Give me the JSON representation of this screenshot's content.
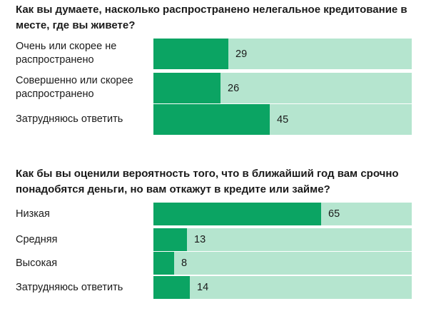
{
  "chart_data": [
    {
      "type": "bar",
      "orientation": "horizontal",
      "title": "Как вы думаете, насколько распространено нелегальное кредитование в месте, где вы живете?",
      "categories": [
        "Очень или скорее не распространено",
        "Совершенно или скорее распространено",
        "Затрудняюсь ответить"
      ],
      "values": [
        29,
        26,
        45
      ],
      "xlim": [
        0,
        100
      ],
      "grid": false,
      "colors": {
        "value": "#0ba463",
        "remainder": "#b5e5cf"
      }
    },
    {
      "type": "bar",
      "orientation": "horizontal",
      "title": "Как бы вы оценили вероятность того, что в ближайший год вам срочно понадобятся деньги, но вам откажут в кредите или займе?",
      "categories": [
        "Низкая",
        "Средняя",
        "Высокая",
        "Затрудняюсь ответить"
      ],
      "values": [
        65,
        13,
        8,
        14
      ],
      "xlim": [
        0,
        100
      ],
      "grid": false,
      "colors": {
        "value": "#0ba463",
        "remainder": "#b5e5cf"
      }
    }
  ]
}
